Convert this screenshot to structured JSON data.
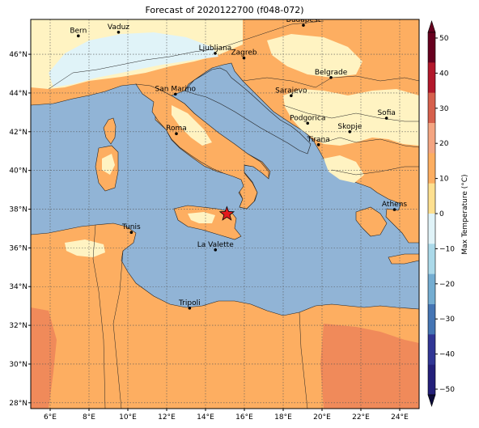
{
  "title": "Forecast of 2020122700 (f048-072)",
  "map": {
    "lon_range": [
      5,
      25
    ],
    "lat_range": [
      27.7,
      47.8
    ],
    "x_ticks": [
      "6°E",
      "8°E",
      "10°E",
      "12°E",
      "14°E",
      "16°E",
      "18°E",
      "20°E",
      "22°E",
      "24°E"
    ],
    "y_ticks": [
      "28°N",
      "30°N",
      "32°N",
      "34°N",
      "36°N",
      "38°N",
      "40°N",
      "42°N",
      "44°N",
      "46°N"
    ],
    "grid": "dotted",
    "colors": {
      "sea": "#91b4d6",
      "warm_10_20": "#fdae61",
      "mild_0_10": "#fff3c2",
      "cool_neg10_0": "#e0f3f8",
      "marker": "#e41a1c"
    },
    "marker_icon": "star-icon",
    "cities": [
      {
        "name": "Bern",
        "lon": 7.45,
        "lat": 46.95
      },
      {
        "name": "Vaduz",
        "lon": 9.52,
        "lat": 47.14
      },
      {
        "name": "Budapest",
        "lon": 19.04,
        "lat": 47.5
      },
      {
        "name": "Ljubljana",
        "lon": 14.5,
        "lat": 46.05
      },
      {
        "name": "Zagreb",
        "lon": 15.98,
        "lat": 45.81
      },
      {
        "name": "Belgrade",
        "lon": 20.46,
        "lat": 44.8
      },
      {
        "name": "San Marino",
        "lon": 12.45,
        "lat": 43.94
      },
      {
        "name": "Sarajevo",
        "lon": 18.41,
        "lat": 43.86
      },
      {
        "name": "Sofia",
        "lon": 23.32,
        "lat": 42.7
      },
      {
        "name": "Podgorica",
        "lon": 19.26,
        "lat": 42.44
      },
      {
        "name": "Skopje",
        "lon": 21.43,
        "lat": 42.0
      },
      {
        "name": "Roma",
        "lon": 12.5,
        "lat": 41.9
      },
      {
        "name": "Tirana",
        "lon": 19.82,
        "lat": 41.33
      },
      {
        "name": "Athens",
        "lon": 23.73,
        "lat": 37.98
      },
      {
        "name": "Tunis",
        "lon": 10.18,
        "lat": 36.8
      },
      {
        "name": "La Valette",
        "lon": 14.51,
        "lat": 35.9
      },
      {
        "name": "Tripoli",
        "lon": 13.18,
        "lat": 32.89
      }
    ],
    "marker_location": {
      "lon": 15.1,
      "lat": 37.75
    }
  },
  "colorbar": {
    "label": "Max Temperature (°C)",
    "ticks": [
      "50",
      "40",
      "30",
      "20",
      "10",
      "0",
      "−10",
      "−20",
      "−30",
      "−40",
      "−50"
    ],
    "colors": [
      "#67001f",
      "#b2182b",
      "#d6604d",
      "#f4a582",
      "#fdae61",
      "#fee090",
      "#e0f3f8",
      "#abd9e9",
      "#74add1",
      "#4575b4",
      "#313695",
      "#24207a"
    ]
  }
}
